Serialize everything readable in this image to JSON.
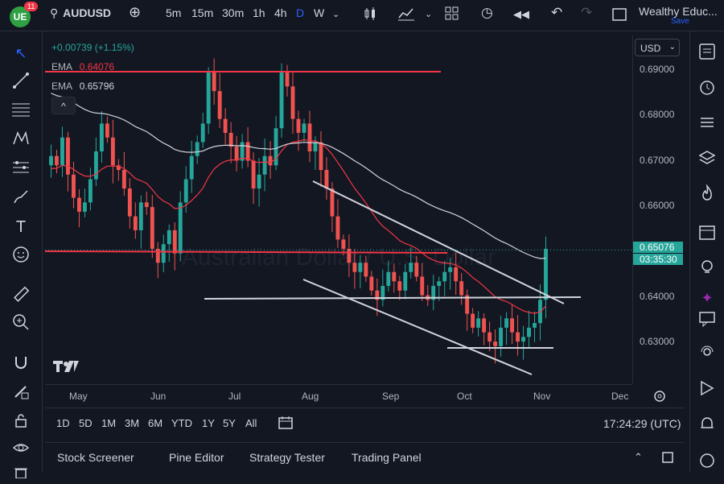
{
  "topbar": {
    "logo_text": "UE",
    "badge": "11",
    "symbol": "AUDUSD",
    "intervals": [
      "5m",
      "15m",
      "30m",
      "1h",
      "4h",
      "D",
      "W"
    ],
    "active_interval": "D",
    "account_name": "Wealthy Educ...",
    "save_label": "Save"
  },
  "legend": {
    "change": "+0.00739 (+1.15%)",
    "ema1_label": "EMA",
    "ema1_value": "0.64076",
    "ema2_label": "EMA",
    "ema2_value": "0.65796",
    "watermark": "Australian Dollar / U.S. Dollar",
    "collapse_symbol": "^"
  },
  "price_axis": {
    "currency": "USD",
    "ticks": [
      "0.69000",
      "0.68000",
      "0.67000",
      "0.66000",
      "0.64000",
      "0.63000"
    ],
    "current_price": "0.65076",
    "countdown": "03:35:30"
  },
  "time_axis": {
    "labels": [
      "May",
      "Jun",
      "Jul",
      "Aug",
      "Sep",
      "Oct",
      "Nov",
      "Dec"
    ]
  },
  "range_bar": {
    "ranges": [
      "1D",
      "5D",
      "1M",
      "3M",
      "6M",
      "YTD",
      "1Y",
      "5Y",
      "All"
    ],
    "clock": "17:24:29 (UTC)"
  },
  "bottom_panel": {
    "tabs": [
      "Stock Screener",
      "Pine Editor",
      "Strategy Tester",
      "Trading Panel"
    ]
  },
  "chart_data": {
    "type": "candlestick",
    "symbol": "AUDUSD",
    "timeframe": "D",
    "ylim": [
      0.622,
      0.697
    ],
    "months": [
      "May",
      "Jun",
      "Jul",
      "Aug",
      "Sep",
      "Oct",
      "Nov",
      "Dec"
    ],
    "current_price": 0.65076,
    "ema_fast_color": "#f23645",
    "ema_slow_color": "#d1d4dc",
    "up_color": "#26a69a",
    "down_color": "#ef5350",
    "close_path": [
      0.671,
      0.669,
      0.675,
      0.667,
      0.662,
      0.659,
      0.661,
      0.666,
      0.672,
      0.678,
      0.675,
      0.669,
      0.668,
      0.664,
      0.658,
      0.655,
      0.661,
      0.66,
      0.651,
      0.648,
      0.652,
      0.655,
      0.65,
      0.661,
      0.666,
      0.671,
      0.674,
      0.678,
      0.689,
      0.685,
      0.679,
      0.676,
      0.673,
      0.67,
      0.674,
      0.67,
      0.664,
      0.667,
      0.671,
      0.669,
      0.677,
      0.689,
      0.686,
      0.679,
      0.676,
      0.678,
      0.672,
      0.674,
      0.668,
      0.664,
      0.658,
      0.653,
      0.651,
      0.648,
      0.646,
      0.648,
      0.645,
      0.642,
      0.64,
      0.643,
      0.646,
      0.644,
      0.642,
      0.646,
      0.648,
      0.645,
      0.641,
      0.64,
      0.643,
      0.644,
      0.646,
      0.647,
      0.644,
      0.641,
      0.637,
      0.634,
      0.636,
      0.633,
      0.631,
      0.63,
      0.634,
      0.636,
      0.633,
      0.631,
      0.632,
      0.634,
      0.635,
      0.64,
      0.651
    ]
  }
}
